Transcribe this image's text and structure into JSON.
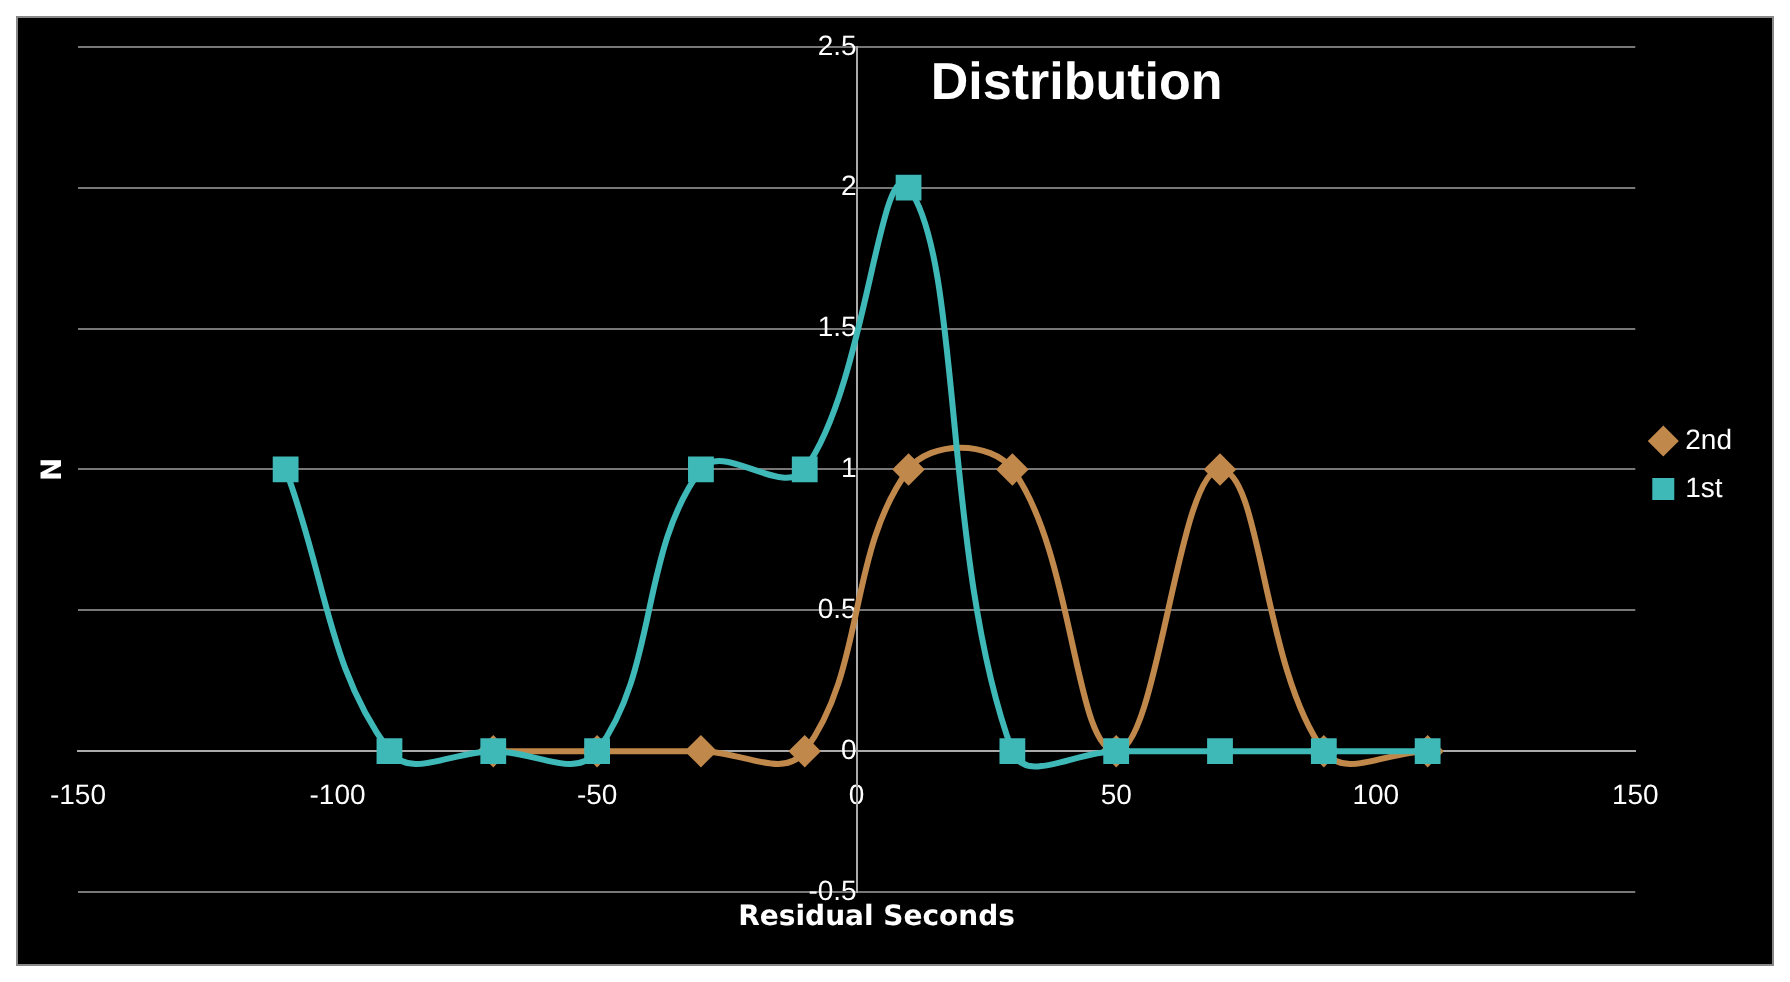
{
  "chart_data": {
    "type": "line",
    "title": "Distribution",
    "xlabel": "Residual Seconds",
    "ylabel": "N",
    "series": [
      {
        "name": "2nd",
        "color": "#c0884a",
        "marker": "diamond",
        "x": [
          -70,
          -50,
          -30,
          -10,
          10,
          30,
          50,
          70,
          90,
          110
        ],
        "values": [
          0,
          0,
          0,
          0,
          1,
          1,
          0,
          1,
          0,
          0
        ]
      },
      {
        "name": "1st",
        "color": "#3fb8b8",
        "marker": "square",
        "x": [
          -110,
          -90,
          -70,
          -50,
          -30,
          -10,
          10,
          30,
          50,
          70,
          90,
          110
        ],
        "values": [
          1,
          0,
          0,
          0,
          1,
          1,
          2,
          0,
          0,
          0,
          0,
          0
        ]
      }
    ],
    "xlim": [
      -150,
      150
    ],
    "xticks": [
      -150,
      -100,
      -50,
      0,
      50,
      100,
      150
    ],
    "ylim": [
      -0.5,
      2.5
    ],
    "yticks": [
      -0.5,
      0,
      0.5,
      1,
      1.5,
      2,
      2.5
    ],
    "grid": "y",
    "legend": "right"
  }
}
